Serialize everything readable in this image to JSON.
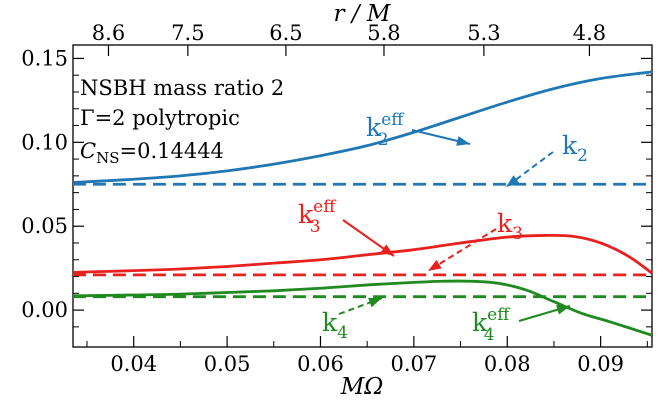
{
  "chart_data": {
    "type": "line",
    "xlabel": "MΩ",
    "top_xlabel": "r / M",
    "xlim": [
      0.0335,
      0.0955
    ],
    "ylim": [
      -0.022,
      0.158
    ],
    "xticks": [
      0.04,
      0.05,
      0.06,
      0.07,
      0.08,
      0.09
    ],
    "xtick_labels": [
      "0.04",
      "0.05",
      "0.06",
      "0.07",
      "0.08",
      "0.09"
    ],
    "yticks": [
      0.0,
      0.05,
      0.1,
      0.15
    ],
    "ytick_labels": [
      "0.00",
      "0.05",
      "0.10",
      "0.15"
    ],
    "top_ticks": [
      {
        "label": "8.6",
        "x": 0.0373
      },
      {
        "label": "7.5",
        "x": 0.0458
      },
      {
        "label": "6.5",
        "x": 0.0563
      },
      {
        "label": "5.8",
        "x": 0.0668
      },
      {
        "label": "5.3",
        "x": 0.0775
      },
      {
        "label": "4.8",
        "x": 0.0888
      }
    ],
    "annotation_lines": [
      "NSBH mass ratio 2",
      "Γ=2 polytropic",
      "CNS=0.14444"
    ],
    "series": [
      {
        "name": "k2eff",
        "color": "#1f77b4",
        "dash": false,
        "x": [
          0.0335,
          0.04,
          0.045,
          0.05,
          0.055,
          0.06,
          0.065,
          0.07,
          0.075,
          0.08,
          0.085,
          0.09,
          0.0955
        ],
        "y": [
          0.076,
          0.078,
          0.08,
          0.083,
          0.087,
          0.092,
          0.098,
          0.106,
          0.115,
          0.124,
          0.132,
          0.138,
          0.142
        ]
      },
      {
        "name": "k2",
        "color": "#1f77b4",
        "dash": true,
        "x": [
          0.0335,
          0.0955
        ],
        "y": [
          0.075,
          0.075
        ]
      },
      {
        "name": "k3eff",
        "color": "#e8201e",
        "dash": false,
        "x": [
          0.0335,
          0.04,
          0.045,
          0.05,
          0.055,
          0.06,
          0.065,
          0.07,
          0.075,
          0.08,
          0.084,
          0.087,
          0.09,
          0.093,
          0.0955
        ],
        "y": [
          0.0225,
          0.0235,
          0.0245,
          0.026,
          0.028,
          0.03,
          0.033,
          0.036,
          0.04,
          0.0435,
          0.0445,
          0.044,
          0.04,
          0.032,
          0.022
        ]
      },
      {
        "name": "k3",
        "color": "#e8201e",
        "dash": true,
        "x": [
          0.0335,
          0.0955
        ],
        "y": [
          0.021,
          0.021
        ]
      },
      {
        "name": "k4eff",
        "color": "#1f8a1f",
        "dash": false,
        "x": [
          0.0335,
          0.04,
          0.045,
          0.05,
          0.055,
          0.06,
          0.065,
          0.07,
          0.073,
          0.076,
          0.079,
          0.082,
          0.085,
          0.088,
          0.091,
          0.0955
        ],
        "y": [
          0.0085,
          0.009,
          0.0095,
          0.0105,
          0.0115,
          0.013,
          0.015,
          0.0165,
          0.0172,
          0.0172,
          0.016,
          0.012,
          0.005,
          -0.002,
          -0.007,
          -0.015
        ]
      },
      {
        "name": "k4",
        "color": "#1f8a1f",
        "dash": true,
        "x": [
          0.0335,
          0.0955
        ],
        "y": [
          0.008,
          0.008
        ]
      }
    ],
    "curve_labels": [
      {
        "base": "k",
        "sub": "2",
        "sup": "eff",
        "color": "#1f77b4",
        "series": "k2eff"
      },
      {
        "base": "k",
        "sub": "2",
        "sup": "",
        "color": "#1f77b4",
        "series": "k2"
      },
      {
        "base": "k",
        "sub": "3",
        "sup": "eff",
        "color": "#e8201e",
        "series": "k3eff"
      },
      {
        "base": "k",
        "sub": "3",
        "sup": "",
        "color": "#e8201e",
        "series": "k3"
      },
      {
        "base": "k",
        "sub": "4",
        "sup": "",
        "color": "#1f8a1f",
        "series": "k4"
      },
      {
        "base": "k",
        "sub": "4",
        "sup": "eff",
        "color": "#1f8a1f",
        "series": "k4eff"
      }
    ],
    "grid": false,
    "legend": "none"
  }
}
